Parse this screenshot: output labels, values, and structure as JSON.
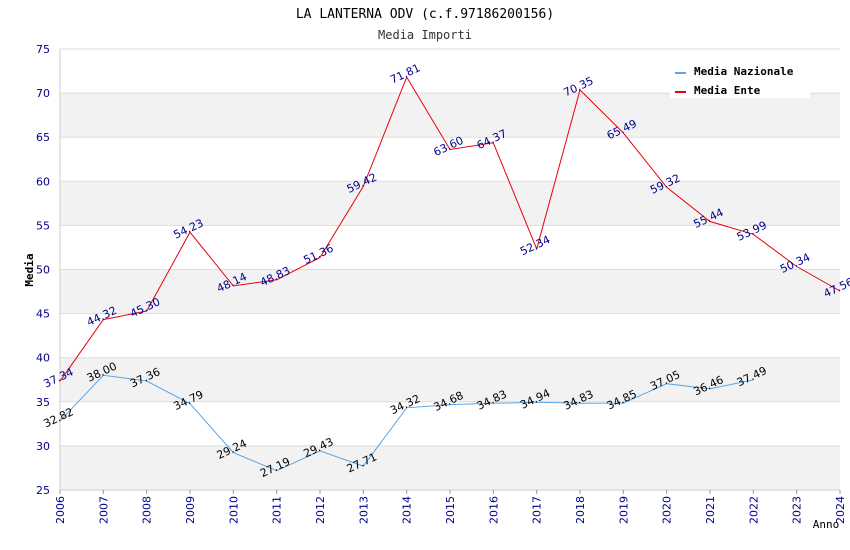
{
  "chart_data": {
    "type": "line",
    "title": "LA LANTERNA ODV (c.f.97186200156)",
    "subtitle": "Media Importi",
    "xlabel": "Anno",
    "ylabel": "Media",
    "ylim": [
      25,
      75
    ],
    "yticks": [
      "25",
      "30",
      "35",
      "40",
      "45",
      "50",
      "55",
      "60",
      "65",
      "70",
      "75"
    ],
    "x": [
      "2006",
      "2007",
      "2008",
      "2009",
      "2010",
      "2011",
      "2012",
      "2013",
      "2014",
      "2015",
      "2016",
      "2017",
      "2018",
      "2019",
      "2020",
      "2021",
      "2022",
      "2023",
      "2024"
    ],
    "legend_position": "top-right",
    "series": [
      {
        "name": "Media Nazionale",
        "color": "#5aa5e6",
        "label_color": "#000000",
        "values": [
          32.82,
          38.0,
          37.36,
          34.79,
          29.24,
          27.19,
          29.43,
          27.71,
          34.32,
          34.68,
          34.83,
          34.94,
          34.83,
          34.85,
          37.05,
          36.46,
          37.49,
          null,
          null
        ],
        "labels": [
          "32.82",
          "38.00",
          "37.36",
          "34.79",
          "29.24",
          "27.19",
          "29.43",
          "27.71",
          "34.32",
          "34.68",
          "34.83",
          "34.94",
          "34.83",
          "34.85",
          "37.05",
          "36.46",
          "37.49",
          "",
          ""
        ]
      },
      {
        "name": "Media Ente",
        "color": "#e8000b",
        "label_color": "#00008b",
        "values": [
          37.34,
          44.32,
          45.3,
          54.23,
          48.14,
          48.83,
          51.36,
          59.42,
          71.81,
          63.6,
          64.37,
          52.34,
          70.35,
          65.49,
          59.32,
          55.44,
          53.99,
          50.34,
          47.56
        ],
        "labels": [
          "37.34",
          "44.32",
          "45.30",
          "54.23",
          "48.14",
          "48.83",
          "51.36",
          "59.42",
          "71.81",
          "63.60",
          "64.37",
          "52.34",
          "70.35",
          "65.49",
          "59.32",
          "55.44",
          "53.99",
          "50.34",
          "47.56"
        ]
      }
    ]
  }
}
